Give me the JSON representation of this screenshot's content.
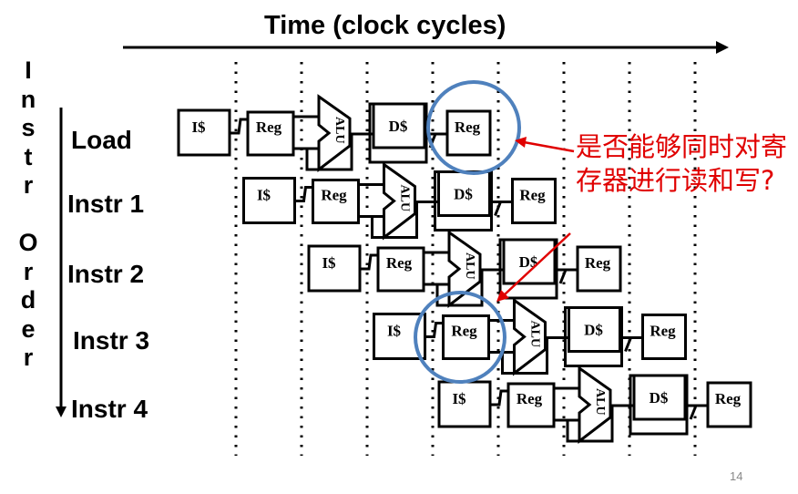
{
  "title": "Time (clock cycles)",
  "vertical_label": [
    "I",
    "n",
    "s",
    "t",
    "r",
    "",
    "O",
    "r",
    "d",
    "e",
    "r"
  ],
  "rows": [
    "Load",
    "Instr 1",
    "Instr 2",
    "Instr 3",
    "Instr 4"
  ],
  "stages": {
    "imem": "I$",
    "reg": "Reg",
    "alu": "ALU",
    "dmem": "D$",
    "wb": "Reg"
  },
  "annotation": "是否能够同时对寄存器进行读和写?",
  "page_number": "14",
  "colors": {
    "annotation": "#e00000",
    "highlight_circle": "#4f81bd"
  }
}
